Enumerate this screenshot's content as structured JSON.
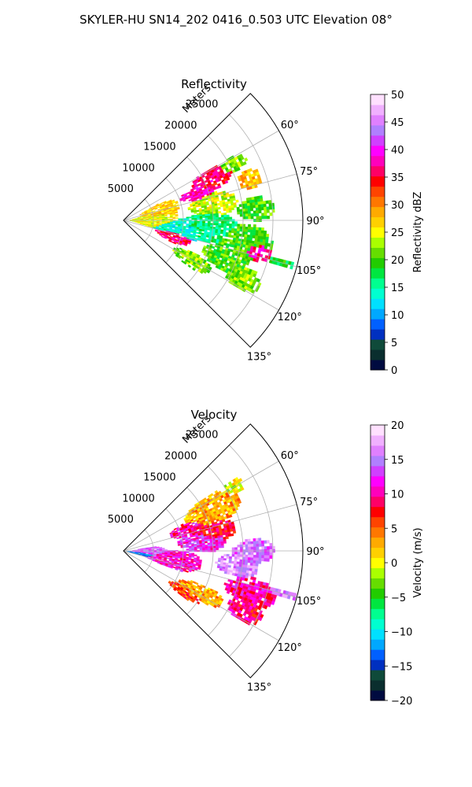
{
  "figure": {
    "title": "SKYLER-HU  SN14_202  0416_0.503 UTC Elevation 08°"
  },
  "chart_data": [
    {
      "type": "heatmap",
      "projection": "polar-sector",
      "title": "Reflectivity",
      "radius_label": "Meters",
      "radius_ticks": [
        5000,
        10000,
        15000,
        20000,
        25000
      ],
      "rmax": 30000,
      "angle_range_deg": [
        45,
        135
      ],
      "angle_ticks": [
        "60°",
        "75°",
        "90°",
        "105°",
        "120°",
        "135°"
      ],
      "grid": true,
      "colorbar": {
        "label": "Reflectivity dBZ",
        "range": [
          0,
          50
        ],
        "ticks": [
          "0",
          "5",
          "10",
          "15",
          "20",
          "25",
          "30",
          "35",
          "40",
          "45",
          "50"
        ],
        "colors": [
          "#000b40",
          "#0a2e2e",
          "#0f4a3a",
          "#0030c0",
          "#0060ff",
          "#00a8ff",
          "#00e0ff",
          "#00ffd0",
          "#00ff90",
          "#00e640",
          "#22cc00",
          "#66dd00",
          "#aaff00",
          "#ffff00",
          "#ffd000",
          "#ffaa00",
          "#ff7700",
          "#ff4400",
          "#ff0000",
          "#ff0066",
          "#ff00bb",
          "#ff00ff",
          "#d040ff",
          "#b080ff",
          "#e080ff",
          "#f0b0ff",
          "#ffe0ff"
        ]
      },
      "field_summary": {
        "value_range": [
          10,
          40
        ],
        "dominant_values": [
          20,
          25,
          35
        ]
      }
    },
    {
      "type": "heatmap",
      "projection": "polar-sector",
      "title": "Velocity",
      "radius_label": "Meters",
      "radius_ticks": [
        5000,
        10000,
        15000,
        20000,
        25000
      ],
      "rmax": 30000,
      "angle_range_deg": [
        45,
        135
      ],
      "angle_ticks": [
        "60°",
        "75°",
        "90°",
        "105°",
        "120°",
        "135°"
      ],
      "grid": true,
      "colorbar": {
        "label": "Velocity (m/s)",
        "range": [
          -20,
          20
        ],
        "ticks": [
          "−20",
          "−15",
          "−10",
          "−5",
          "0",
          "5",
          "10",
          "15",
          "20"
        ],
        "colors": [
          "#000b40",
          "#0a2e2e",
          "#0f4a3a",
          "#0030c0",
          "#0060ff",
          "#00a8ff",
          "#00e0ff",
          "#00ffd0",
          "#00ff90",
          "#00e640",
          "#22cc00",
          "#66dd00",
          "#aaff00",
          "#ffff00",
          "#ffd000",
          "#ffaa00",
          "#ff7700",
          "#ff4400",
          "#ff0000",
          "#ff0066",
          "#ff00bb",
          "#ff00ff",
          "#d040ff",
          "#b080ff",
          "#e080ff",
          "#f0b0ff",
          "#ffe0ff"
        ]
      },
      "field_summary": {
        "value_range": [
          -12,
          17
        ],
        "dominant_values": [
          2,
          8,
          12
        ]
      }
    }
  ]
}
